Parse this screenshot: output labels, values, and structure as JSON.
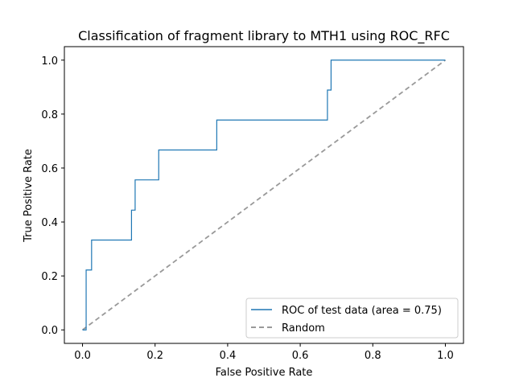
{
  "chart_data": {
    "type": "line",
    "title": "Classification of fragment library to MTH1 using ROC_RFC",
    "xlabel": "False Positive Rate",
    "ylabel": "True Positive Rate",
    "xlim": [
      -0.05,
      1.05
    ],
    "ylim": [
      -0.05,
      1.05
    ],
    "x_ticks": [
      "0.0",
      "0.2",
      "0.4",
      "0.6",
      "0.8",
      "1.0"
    ],
    "y_ticks": [
      "0.0",
      "0.2",
      "0.4",
      "0.6",
      "0.8",
      "1.0"
    ],
    "grid": false,
    "legend_position": "lower right",
    "series": [
      {
        "name": "ROC of test data (area = 0.75)",
        "color": "#1f77b4",
        "style": "solid",
        "x": [
          0.0,
          0.01,
          0.01,
          0.015,
          0.015,
          0.025,
          0.025,
          0.135,
          0.135,
          0.145,
          0.145,
          0.21,
          0.21,
          0.37,
          0.37,
          0.675,
          0.675,
          0.685,
          0.685,
          1.0
        ],
        "y": [
          0.0,
          0.0,
          0.222,
          0.222,
          0.222,
          0.222,
          0.333,
          0.333,
          0.444,
          0.444,
          0.556,
          0.556,
          0.667,
          0.667,
          0.778,
          0.778,
          0.889,
          0.889,
          1.0,
          1.0
        ]
      },
      {
        "name": "Random",
        "color": "#999999",
        "style": "dashed",
        "x": [
          0.0,
          1.0
        ],
        "y": [
          0.0,
          1.0
        ]
      }
    ]
  }
}
